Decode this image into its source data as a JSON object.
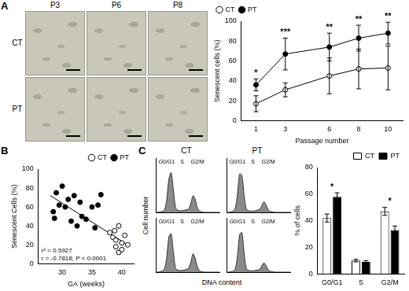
{
  "panel_labels": [
    "A",
    "B",
    "C"
  ],
  "micrographs": {
    "columns": [
      "P3",
      "P6",
      "P8"
    ],
    "rows": [
      "CT",
      "PT"
    ]
  },
  "chart_data": [
    {
      "type": "line",
      "xlabel": "Passage number",
      "ylabel": "Senescent cells (%)",
      "x": [
        1,
        3,
        6,
        8,
        10
      ],
      "xlim": [
        0,
        11
      ],
      "xticks": [
        1,
        3,
        6,
        8,
        10
      ],
      "ylim": [
        0,
        100
      ],
      "yticks": [
        0,
        20,
        40,
        60,
        80,
        100
      ],
      "grid": false,
      "legend": "upper left",
      "series": [
        {
          "name": "CT",
          "color": "#000000",
          "marker": "open_circle",
          "values": [
            17,
            31,
            45,
            52,
            53
          ],
          "errors": [
            8,
            7,
            18,
            20,
            22
          ]
        },
        {
          "name": "PT",
          "color": "#000000",
          "marker": "filled_circle",
          "values": [
            36,
            67,
            74,
            83,
            88
          ],
          "errors": [
            6,
            16,
            14,
            13,
            11
          ]
        }
      ],
      "significance": [
        "*",
        "***",
        "**",
        "**",
        "**"
      ]
    },
    {
      "type": "scatter",
      "xlabel": "GA (weeks)",
      "ylabel": "Senescent Cells (%)",
      "xlim": [
        26,
        42
      ],
      "xticks": [
        30,
        35,
        40
      ],
      "ylim": [
        0,
        100
      ],
      "yticks": [
        0,
        20,
        40,
        60,
        80,
        100
      ],
      "grid": false,
      "legend": "upper right",
      "annotations": [
        "r² = 0.5927",
        "r = -0.7818; P < 0.0001"
      ],
      "series": [
        {
          "name": "CT",
          "color": "#000000",
          "marker": "open_circle",
          "x": [
            38,
            38.5,
            38.8,
            39,
            39,
            39.5,
            39.5,
            40,
            40,
            40.5,
            41
          ],
          "values": [
            33,
            28,
            35,
            25,
            18,
            40,
            12,
            22,
            15,
            30,
            20
          ]
        },
        {
          "name": "PT",
          "color": "#000000",
          "marker": "filled_circle",
          "x": [
            28.5,
            28.7,
            29,
            29.5,
            30,
            30.5,
            31,
            31.5,
            32,
            32.5,
            33,
            33.3,
            34,
            35,
            35.5,
            36,
            36.5
          ],
          "values": [
            55,
            48,
            75,
            62,
            82,
            60,
            68,
            45,
            72,
            40,
            65,
            50,
            47,
            60,
            38,
            62,
            73
          ]
        },
        {
          "type": "line",
          "color": "#000000",
          "line_style": "solid",
          "x": [
            28,
            41
          ],
          "values": [
            72,
            20
          ]
        }
      ]
    },
    {
      "type": "area",
      "xlabel": "DNA content",
      "ylabel": "Cell number",
      "tick_labels": false,
      "xlim": [
        0,
        29
      ],
      "ylim": [
        0,
        130
      ],
      "color": "#8a8a8a",
      "x": [
        0,
        1,
        2,
        3,
        4,
        5,
        6,
        7,
        8,
        9,
        10,
        11,
        12,
        13,
        14,
        15,
        16,
        17,
        18,
        19,
        20,
        21,
        22,
        23,
        24,
        25,
        26,
        27,
        28,
        29
      ],
      "phase_labels": [
        "G0/G1",
        "S",
        "G2/M"
      ],
      "phase_x": [
        5,
        12,
        19
      ],
      "columns": [
        "CT",
        "PT"
      ],
      "panels": [
        [
          [
            0,
            0,
            1,
            2,
            6,
            30,
            80,
            95,
            55,
            12,
            5,
            4,
            4,
            5,
            6,
            8,
            22,
            40,
            30,
            10,
            3,
            1,
            0,
            0,
            0,
            0,
            0,
            0,
            0,
            0
          ],
          [
            0,
            0,
            1,
            3,
            8,
            35,
            85,
            92,
            50,
            10,
            5,
            4,
            4,
            5,
            7,
            10,
            25,
            44,
            32,
            12,
            3,
            1,
            0,
            0,
            0,
            0,
            0,
            0,
            0,
            0
          ]
        ],
        [
          [
            0,
            0,
            1,
            3,
            10,
            45,
            92,
            88,
            40,
            8,
            4,
            3,
            3,
            4,
            5,
            7,
            15,
            25,
            18,
            6,
            2,
            1,
            0,
            0,
            0,
            0,
            0,
            0,
            0,
            0
          ],
          [
            0,
            0,
            1,
            2,
            8,
            40,
            90,
            95,
            45,
            9,
            4,
            3,
            3,
            4,
            5,
            6,
            14,
            22,
            16,
            5,
            2,
            1,
            0,
            0,
            0,
            0,
            0,
            0,
            0,
            0
          ]
        ]
      ]
    },
    {
      "type": "bar",
      "categories": [
        "G0/G1",
        "S",
        "G2/M"
      ],
      "ylabel": "% of cells",
      "ylim": [
        0,
        80
      ],
      "yticks": [
        0,
        20,
        40,
        60,
        80
      ],
      "grid": false,
      "legend": "upper right",
      "series": [
        {
          "name": "CT",
          "color": "#ffffff",
          "values": [
            42,
            10,
            47
          ],
          "errors": [
            3,
            1,
            3
          ]
        },
        {
          "name": "PT",
          "color": "#000000",
          "values": [
            58,
            9,
            33
          ],
          "errors": [
            3,
            1,
            3
          ]
        }
      ],
      "significance": [
        "*",
        null,
        "*"
      ]
    }
  ]
}
